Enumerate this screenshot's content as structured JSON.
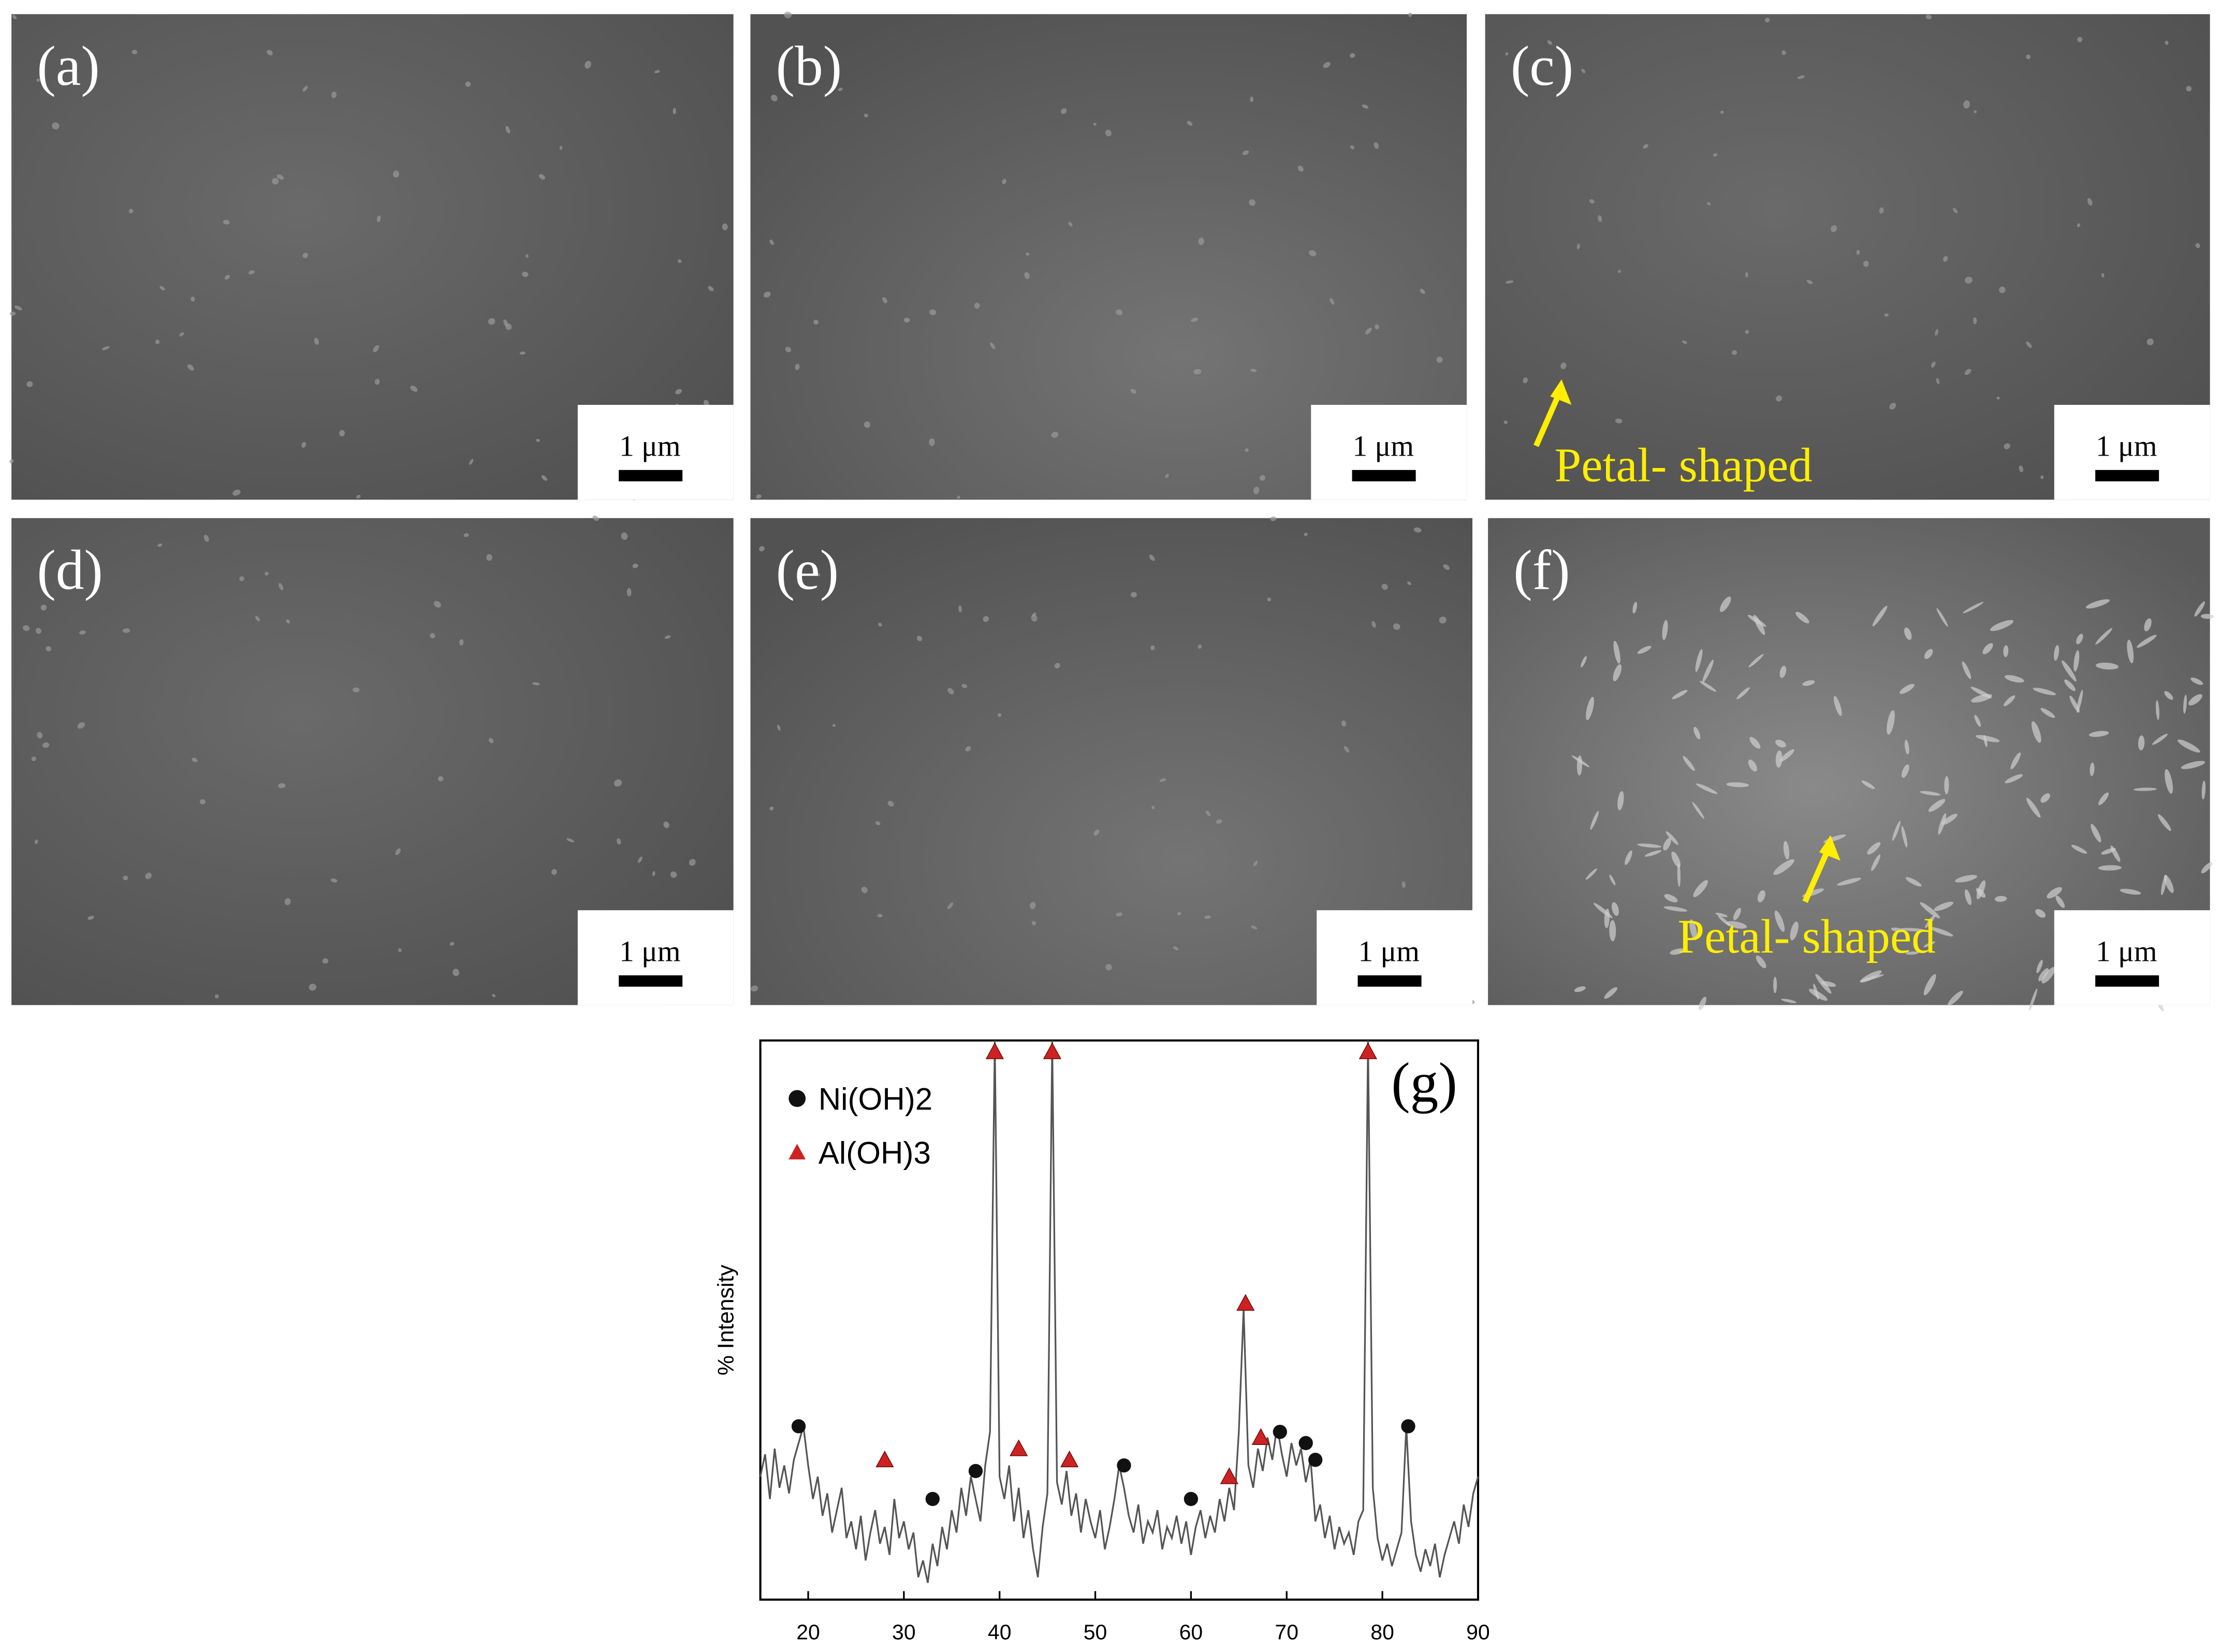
{
  "panels": [
    {
      "label": "(a)",
      "scale_bar": "1 μm"
    },
    {
      "label": "(b)",
      "scale_bar": "1 μm"
    },
    {
      "label": "(c)",
      "scale_bar": "1 μm",
      "annotation": "Petal- shaped"
    },
    {
      "label": "(d)",
      "scale_bar": "1 μm"
    },
    {
      "label": "(e)",
      "scale_bar": "1 μm"
    },
    {
      "label": "(f)",
      "scale_bar": "1 μm",
      "annotation": "Petal- shaped"
    }
  ],
  "chart_data": {
    "type": "line",
    "label": "(g)",
    "ylabel": "% Intensity",
    "x": [
      15,
      15.5,
      16,
      16.5,
      17,
      17.5,
      18,
      18.5,
      19,
      19.5,
      20,
      20.5,
      21,
      21.5,
      22,
      22.5,
      23,
      23.5,
      24,
      24.5,
      25,
      25.5,
      26,
      26.5,
      27,
      27.5,
      28,
      28.5,
      29,
      29.5,
      30,
      30.5,
      31,
      31.5,
      32,
      32.5,
      33,
      33.5,
      34,
      34.5,
      35,
      35.5,
      36,
      36.5,
      37,
      37.5,
      38,
      38.5,
      39,
      39.5,
      40,
      40.5,
      41,
      41.5,
      42,
      42.5,
      43,
      43.5,
      44,
      44.5,
      45,
      45.5,
      46,
      46.5,
      47,
      47.5,
      48,
      48.5,
      49,
      49.5,
      50,
      50.5,
      51,
      51.5,
      52,
      52.5,
      53,
      53.5,
      54,
      54.5,
      55,
      55.5,
      56,
      56.5,
      57,
      57.5,
      58,
      58.5,
      59,
      59.5,
      60,
      60.5,
      61,
      61.5,
      62,
      62.5,
      63,
      63.5,
      64,
      64.5,
      65,
      65.5,
      66,
      66.5,
      67,
      67.5,
      68,
      68.5,
      69,
      69.5,
      70,
      70.5,
      71,
      71.5,
      72,
      72.5,
      73,
      73.5,
      74,
      74.5,
      75,
      75.5,
      76,
      76.5,
      77,
      77.5,
      78,
      78.5,
      79,
      79.5,
      80,
      80.5,
      81,
      81.5,
      82,
      82.5,
      83,
      83.5,
      84,
      84.5,
      85,
      85.5,
      86,
      86.5,
      87,
      87.5,
      88,
      88.5,
      89,
      89.5,
      90
    ],
    "series": [
      {
        "color": "#555555",
        "values": [
          22,
          26,
          18,
          27,
          20,
          24,
          19,
          25,
          28,
          31,
          24,
          18,
          22,
          15,
          19,
          12,
          16,
          20,
          11,
          14,
          9,
          15,
          7,
          12,
          16,
          10,
          13,
          8,
          18,
          11,
          14,
          9,
          12,
          4,
          7,
          3,
          10,
          6,
          13,
          9,
          16,
          12,
          20,
          15,
          22,
          18,
          14,
          24,
          30,
          100,
          22,
          18,
          24,
          14,
          20,
          11,
          16,
          9,
          4,
          13,
          19,
          100,
          21,
          17,
          23,
          15,
          19,
          12,
          18,
          14,
          11,
          16,
          9,
          13,
          18,
          24,
          20,
          15,
          12,
          17,
          10,
          14,
          12,
          16,
          9,
          13,
          11,
          15,
          10,
          14,
          8,
          13,
          16,
          11,
          15,
          12,
          18,
          14,
          20,
          16,
          30,
          52,
          24,
          20,
          27,
          23,
          29,
          25,
          31,
          26,
          22,
          28,
          24,
          27,
          21,
          25,
          14,
          17,
          11,
          15,
          9,
          13,
          10,
          12,
          8,
          14,
          16,
          100,
          20,
          11,
          7,
          10,
          6,
          9,
          12,
          31,
          14,
          8,
          5,
          9,
          6,
          10,
          4,
          8,
          11,
          14,
          10,
          17,
          13,
          19,
          22
        ]
      },
      {
        "name": "Ni(OH)2",
        "type": "scatter",
        "marker": "circle",
        "color": "#111111",
        "x": [
          19,
          33,
          37.5,
          53,
          60,
          69.3,
          72,
          73,
          82.7
        ],
        "values": [
          31,
          18,
          23,
          24,
          18,
          30,
          28,
          25,
          31
        ]
      },
      {
        "name": "Al(OH)3",
        "type": "scatter",
        "marker": "triangle",
        "color": "#cc2222",
        "x": [
          28,
          39.5,
          42,
          45.5,
          47.3,
          64,
          65.7,
          67.3,
          78.5
        ],
        "values": [
          25,
          98,
          27,
          98,
          25,
          22,
          53,
          29,
          98
        ]
      }
    ],
    "xlim": [
      15,
      90
    ],
    "xticks": [
      20,
      30,
      40,
      50,
      60,
      70,
      80,
      90
    ],
    "ylim": [
      0,
      100
    ]
  }
}
